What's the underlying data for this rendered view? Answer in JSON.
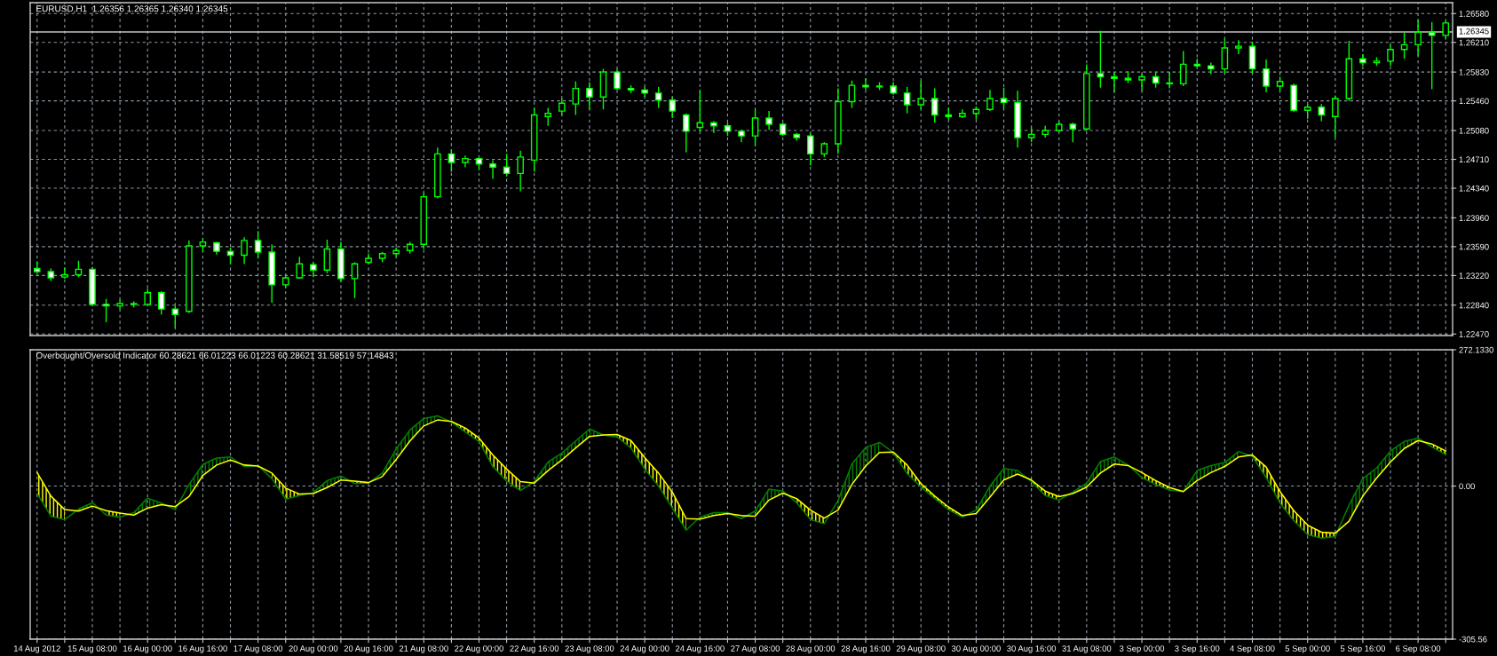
{
  "chart_data": [
    {
      "type": "candlestick",
      "title": "EURUSD,H1  1.26356 1.26365 1.26340 1.26345",
      "color": "#00ff00",
      "categories": [
        null,
        null,
        null,
        null,
        null,
        null,
        null,
        null,
        null,
        null,
        null,
        null,
        null,
        null,
        null,
        null,
        null,
        null,
        null,
        null,
        null,
        null,
        null,
        null,
        null,
        null,
        null,
        null,
        null,
        null,
        null,
        null,
        null,
        null,
        null,
        null,
        null,
        null,
        null,
        null,
        null,
        null,
        null,
        null,
        null,
        null,
        null,
        null,
        null,
        null,
        null,
        null,
        null,
        null,
        null,
        null,
        null,
        null,
        null,
        null,
        null,
        null,
        null,
        null,
        null,
        null,
        null,
        null,
        null,
        null,
        null,
        null,
        null,
        null,
        null,
        null,
        null,
        null,
        null,
        null,
        null,
        null,
        null,
        null,
        null,
        null,
        null,
        null,
        null,
        null,
        null,
        null,
        null,
        null,
        null,
        null,
        null,
        null,
        null,
        null,
        null,
        null,
        null
      ],
      "ohlc": [
        [
          1.2331,
          1.234,
          1.2325,
          1.2327
        ],
        [
          1.2327,
          1.2331,
          1.2315,
          1.2319
        ],
        [
          1.232,
          1.2332,
          1.2318,
          1.2323
        ],
        [
          1.2323,
          1.2341,
          1.232,
          1.233
        ],
        [
          1.233,
          1.2333,
          1.2283,
          1.2285
        ],
        [
          1.2285,
          1.2292,
          1.2262,
          1.2283
        ],
        [
          1.2283,
          1.2291,
          1.2279,
          1.2286
        ],
        [
          1.2286,
          1.2289,
          1.2281,
          1.2285
        ],
        [
          1.2285,
          1.2305,
          1.2283,
          1.23
        ],
        [
          1.23,
          1.2302,
          1.2272,
          1.2279
        ],
        [
          1.2279,
          1.2283,
          1.2255,
          1.2272
        ],
        [
          1.2276,
          1.2367,
          1.2274,
          1.236
        ],
        [
          1.236,
          1.237,
          1.2352,
          1.2365
        ],
        [
          1.2364,
          1.2365,
          1.2349,
          1.2353
        ],
        [
          1.2353,
          1.2358,
          1.2337,
          1.2348
        ],
        [
          1.2348,
          1.2371,
          1.2337,
          1.2367
        ],
        [
          1.2367,
          1.2379,
          1.2344,
          1.2352
        ],
        [
          1.2352,
          1.2362,
          1.2287,
          1.231
        ],
        [
          1.231,
          1.2323,
          1.2306,
          1.2319
        ],
        [
          1.2319,
          1.2346,
          1.2318,
          1.2337
        ],
        [
          1.2336,
          1.2339,
          1.232,
          1.2329
        ],
        [
          1.2329,
          1.2368,
          1.2325,
          1.2356
        ],
        [
          1.2356,
          1.2365,
          1.2314,
          1.2318
        ],
        [
          1.2318,
          1.2339,
          1.2293,
          1.2337
        ],
        [
          1.2339,
          1.235,
          1.2337,
          1.2344
        ],
        [
          1.2344,
          1.2352,
          1.2339,
          1.235
        ],
        [
          1.235,
          1.2358,
          1.2346,
          1.2354
        ],
        [
          1.2354,
          1.2365,
          1.235,
          1.2362
        ],
        [
          1.2362,
          1.2428,
          1.2356,
          1.2423
        ],
        [
          1.2423,
          1.2486,
          1.2421,
          1.2478
        ],
        [
          1.2478,
          1.2484,
          1.2455,
          1.2467
        ],
        [
          1.2467,
          1.2476,
          1.2461,
          1.2472
        ],
        [
          1.2472,
          1.2474,
          1.2457,
          1.2465
        ],
        [
          1.2465,
          1.247,
          1.2446,
          1.2461
        ],
        [
          1.2461,
          1.2478,
          1.2449,
          1.2453
        ],
        [
          1.2453,
          1.2482,
          1.243,
          1.2474
        ],
        [
          1.247,
          1.2537,
          1.2455,
          1.2528
        ],
        [
          1.2526,
          1.2537,
          1.2514,
          1.253
        ],
        [
          1.2533,
          1.2549,
          1.2528,
          1.2543
        ],
        [
          1.2542,
          1.2571,
          1.2528,
          1.2562
        ],
        [
          1.2562,
          1.257,
          1.2535,
          1.2551
        ],
        [
          1.2551,
          1.2587,
          1.2535,
          1.2583
        ],
        [
          1.2583,
          1.2587,
          1.256,
          1.2562
        ],
        [
          1.2562,
          1.2566,
          1.2556,
          1.256
        ],
        [
          1.256,
          1.2564,
          1.2551,
          1.2556
        ],
        [
          1.2556,
          1.2564,
          1.2537,
          1.2547
        ],
        [
          1.2547,
          1.2551,
          1.2524,
          1.2533
        ],
        [
          1.2528,
          1.253,
          1.248,
          1.2507
        ],
        [
          1.2512,
          1.256,
          1.2507,
          1.2518
        ],
        [
          1.2518,
          1.252,
          1.2505,
          1.2514
        ],
        [
          1.2514,
          1.2518,
          1.2501,
          1.2507
        ],
        [
          1.2507,
          1.2509,
          1.2493,
          1.2501
        ],
        [
          1.2501,
          1.2535,
          1.2488,
          1.2524
        ],
        [
          1.2524,
          1.2533,
          1.2509,
          1.2516
        ],
        [
          1.2516,
          1.2518,
          1.2501,
          1.2503
        ],
        [
          1.2503,
          1.2505,
          1.2495,
          1.2499
        ],
        [
          1.2501,
          1.2505,
          1.2463,
          1.2478
        ],
        [
          1.2478,
          1.2493,
          1.2474,
          1.2491
        ],
        [
          1.2491,
          1.2562,
          1.2478,
          1.2545
        ],
        [
          1.2545,
          1.2572,
          1.2537,
          1.2566
        ],
        [
          1.2566,
          1.2575,
          1.256,
          1.2564
        ],
        [
          1.2564,
          1.257,
          1.256,
          1.2565
        ],
        [
          1.2565,
          1.257,
          1.2554,
          1.2556
        ],
        [
          1.2556,
          1.2564,
          1.253,
          1.2541
        ],
        [
          1.2541,
          1.2572,
          1.2535,
          1.2549
        ],
        [
          1.2549,
          1.2562,
          1.2518,
          1.2528
        ],
        [
          1.2528,
          1.2537,
          1.2522,
          1.2526
        ],
        [
          1.2526,
          1.2535,
          1.2524,
          1.253
        ],
        [
          1.253,
          1.2539,
          1.2522,
          1.2535
        ],
        [
          1.2535,
          1.256,
          1.2533,
          1.2549
        ],
        [
          1.2549,
          1.2563,
          1.2536,
          1.2544
        ],
        [
          1.2544,
          1.2559,
          1.2486,
          1.2499
        ],
        [
          1.2499,
          1.2512,
          1.2493,
          1.2503
        ],
        [
          1.2503,
          1.2514,
          1.2499,
          1.2508
        ],
        [
          1.2508,
          1.252,
          1.2506,
          1.2516
        ],
        [
          1.2516,
          1.2518,
          1.2493,
          1.251
        ],
        [
          1.251,
          1.2593,
          1.2508,
          1.2581
        ],
        [
          1.2581,
          1.2636,
          1.2563,
          1.2577
        ],
        [
          1.2577,
          1.2583,
          1.2557,
          1.2575
        ],
        [
          1.2575,
          1.2584,
          1.2569,
          1.2573
        ],
        [
          1.2573,
          1.2581,
          1.2559,
          1.2577
        ],
        [
          1.2577,
          1.2583,
          1.2563,
          1.2569
        ],
        [
          1.2569,
          1.2583,
          1.2562,
          1.2568
        ],
        [
          1.2568,
          1.261,
          1.2565,
          1.2593
        ],
        [
          1.2593,
          1.26,
          1.2589,
          1.2591
        ],
        [
          1.2591,
          1.2595,
          1.258,
          1.2587
        ],
        [
          1.2587,
          1.2626,
          1.2581,
          1.2614
        ],
        [
          1.2614,
          1.2624,
          1.2606,
          1.2616
        ],
        [
          1.2616,
          1.2622,
          1.2581,
          1.2587
        ],
        [
          1.2587,
          1.2599,
          1.2557,
          1.2565
        ],
        [
          1.2565,
          1.2577,
          1.2559,
          1.2571
        ],
        [
          1.2566,
          1.2568,
          1.2532,
          1.2534
        ],
        [
          1.2534,
          1.2542,
          1.2523,
          1.2538
        ],
        [
          1.2538,
          1.2542,
          1.252,
          1.2528
        ],
        [
          1.2526,
          1.2553,
          1.2499,
          1.2549
        ],
        [
          1.2549,
          1.2623,
          1.2546,
          1.26
        ],
        [
          1.26,
          1.2606,
          1.2591,
          1.2595
        ],
        [
          1.2595,
          1.2602,
          1.2591,
          1.2597
        ],
        [
          1.2597,
          1.2618,
          1.2591,
          1.2612
        ],
        [
          1.2612,
          1.2634,
          1.26,
          1.2618
        ],
        [
          1.2618,
          1.265,
          1.2604,
          1.2634
        ],
        [
          1.2634,
          1.2647,
          1.2561,
          1.263
        ],
        [
          1.263,
          1.2649,
          1.2626,
          1.2646
        ]
      ],
      "ylim": [
        1.2245,
        1.2672
      ],
      "yticks": [
        {
          "value": 1.2658,
          "label": "1.26580"
        },
        {
          "value": 1.2621,
          "label": "1.26210"
        },
        {
          "value": 1.2583,
          "label": "1.25830"
        },
        {
          "value": 1.2546,
          "label": "1.25460"
        },
        {
          "value": 1.2508,
          "label": "1.25080"
        },
        {
          "value": 1.2471,
          "label": "1.24710"
        },
        {
          "value": 1.2434,
          "label": "1.24340"
        },
        {
          "value": 1.2396,
          "label": "1.23960"
        },
        {
          "value": 1.2359,
          "label": "1.23590"
        },
        {
          "value": 1.2322,
          "label": "1.23220"
        },
        {
          "value": 1.2284,
          "label": "1.22840"
        },
        {
          "value": 1.2247,
          "label": "1.22470"
        }
      ],
      "ref_lines": [
        {
          "axis": "y",
          "value": 1.26345,
          "label": "1.26345",
          "color": "#c0c0c0"
        }
      ],
      "grid": true,
      "tick_labels": "y"
    },
    {
      "type": "line",
      "title": "Overbought/Oversold Indicator 60.28621 66.01223 66.01223 60.28621 31.58519 57.14843",
      "categories": [
        "14 Aug 2012",
        null,
        null,
        null,
        "15 Aug 08:00",
        null,
        null,
        null,
        "16 Aug 00:00",
        null,
        null,
        null,
        "16 Aug 16:00",
        null,
        null,
        null,
        "17 Aug 08:00",
        null,
        null,
        null,
        "20 Aug 00:00",
        null,
        null,
        null,
        "20 Aug 16:00",
        null,
        null,
        null,
        "21 Aug 08:00",
        null,
        null,
        null,
        "22 Aug 00:00",
        null,
        null,
        null,
        "22 Aug 16:00",
        null,
        null,
        null,
        "23 Aug 08:00",
        null,
        null,
        null,
        "24 Aug 00:00",
        null,
        null,
        null,
        "24 Aug 16:00",
        null,
        null,
        null,
        "27 Aug 08:00",
        null,
        null,
        null,
        "28 Aug 00:00",
        null,
        null,
        null,
        "28 Aug 16:00",
        null,
        null,
        null,
        "29 Aug 08:00",
        null,
        null,
        null,
        "30 Aug 00:00",
        null,
        null,
        null,
        "30 Aug 16:00",
        null,
        null,
        null,
        "31 Aug 08:00",
        null,
        null,
        null,
        "3 Sep 00:00",
        null,
        null,
        null,
        "3 Sep 16:00",
        null,
        null,
        null,
        "4 Sep 08:00",
        null,
        null,
        null,
        "5 Sep 00:00",
        null,
        null,
        null,
        "5 Sep 16:00",
        null,
        null,
        null,
        "6 Sep 08:00",
        null,
        null
      ],
      "series": [
        {
          "color": "#008000",
          "values": [
            -15,
            -60,
            -67,
            -46,
            -33,
            -58,
            -62,
            -53,
            -24,
            -34,
            -47,
            3,
            43,
            56,
            58,
            39,
            41,
            15,
            -26,
            -19,
            -13,
            11,
            20,
            5,
            6,
            26,
            74,
            112,
            135,
            140,
            128,
            108,
            89,
            39,
            10,
            -9,
            9,
            48,
            66,
            90,
            114,
            102,
            98,
            76,
            34,
            0,
            -44,
            -88,
            -62,
            -53,
            -53,
            -65,
            -50,
            -6,
            -10,
            -33,
            -67,
            -75,
            -29,
            44,
            77,
            87,
            67,
            25,
            -2,
            -25,
            -47,
            -62,
            -48,
            0,
            35,
            31,
            9,
            -19,
            -28,
            -12,
            6,
            49,
            58,
            42,
            17,
            3,
            -8,
            -11,
            31,
            41,
            47,
            69,
            59,
            17,
            -34,
            -69,
            -97,
            -104,
            -101,
            -38,
            15,
            36,
            70,
            89,
            96,
            78,
            63
          ],
          "lower": [
            null,
            null,
            null,
            -50,
            -40,
            null,
            null,
            -58,
            -44,
            -37,
            null,
            -21,
            21,
            42,
            52,
            null,
            null,
            null,
            null,
            null,
            -15,
            -3,
            12,
            null,
            null,
            19,
            53,
            90,
            120,
            132,
            null,
            null,
            null,
            null,
            null,
            null,
            6,
            31,
            52,
            76,
            99,
            102,
            null,
            null,
            null,
            null,
            null,
            null,
            -66,
            -59,
            -55,
            null,
            -60,
            -28,
            -14,
            null,
            null,
            null,
            -48,
            3,
            40,
            67,
            null,
            null,
            null,
            null,
            null,
            null,
            -55,
            -22,
            12,
            24,
            null,
            null,
            null,
            -15,
            -2,
            26,
            44,
            41,
            null,
            null,
            null,
            -11,
            11,
            27,
            39,
            58,
            null,
            null,
            null,
            null,
            null,
            null,
            null,
            -70,
            -20,
            16,
            48,
            75,
            91,
            null,
            null
          ],
          "upper": [
            null,
            null,
            null,
            -46,
            -33,
            null,
            null,
            -53,
            -24,
            -34,
            null,
            3,
            43,
            56,
            58,
            null,
            null,
            null,
            null,
            null,
            -13,
            11,
            20,
            null,
            null,
            26,
            74,
            112,
            135,
            140,
            null,
            null,
            null,
            null,
            null,
            null,
            9,
            48,
            66,
            90,
            114,
            102,
            null,
            null,
            null,
            null,
            null,
            null,
            -62,
            -53,
            -53,
            null,
            -50,
            -6,
            -10,
            null,
            null,
            null,
            -29,
            44,
            77,
            87,
            null,
            null,
            null,
            null,
            null,
            null,
            -48,
            0,
            35,
            31,
            null,
            null,
            null,
            -12,
            6,
            49,
            58,
            42,
            null,
            null,
            null,
            -11,
            31,
            41,
            47,
            69,
            null,
            null,
            null,
            null,
            null,
            null,
            null,
            -38,
            15,
            36,
            70,
            89,
            96,
            null,
            null
          ]
        },
        {
          "color": "#ffff00",
          "values": [
            27,
            -20,
            -47,
            -50,
            -40,
            -49,
            -54,
            -58,
            -44,
            -37,
            -41,
            -21,
            21,
            42,
            52,
            42,
            40,
            26,
            -4,
            -16,
            -15,
            -3,
            12,
            10,
            7,
            19,
            53,
            90,
            120,
            132,
            129,
            116,
            96,
            62,
            34,
            9,
            6,
            31,
            52,
            76,
            99,
            102,
            103,
            91,
            57,
            26,
            -12,
            -65,
            -66,
            -59,
            -55,
            -59,
            -60,
            -28,
            -14,
            -25,
            -48,
            -64,
            -48,
            3,
            40,
            67,
            68,
            42,
            5,
            -20,
            -42,
            -59,
            -55,
            -22,
            12,
            24,
            12,
            -10,
            -21,
            -15,
            -2,
            26,
            44,
            41,
            27,
            11,
            -3,
            -11,
            11,
            27,
            39,
            58,
            62,
            38,
            -11,
            -49,
            -78,
            -92,
            -94,
            -70,
            -20,
            16,
            48,
            75,
            91,
            84,
            70
          ],
          "lower": [
            -15,
            -60,
            -67,
            null,
            null,
            -58,
            -62,
            null,
            null,
            null,
            null,
            null,
            null,
            null,
            null,
            null,
            null,
            15,
            -26,
            -19,
            null,
            null,
            null,
            5,
            6,
            null,
            null,
            null,
            null,
            null,
            128,
            108,
            89,
            39,
            10,
            -9,
            null,
            null,
            null,
            null,
            null,
            null,
            98,
            76,
            34,
            0,
            -44,
            -88,
            null,
            null,
            null,
            null,
            null,
            null,
            null,
            -33,
            -67,
            -75,
            null,
            null,
            null,
            null,
            67,
            25,
            -2,
            -25,
            -47,
            -62,
            null,
            null,
            null,
            null,
            9,
            -19,
            -28,
            null,
            null,
            null,
            null,
            null,
            17,
            3,
            -8,
            null,
            null,
            null,
            null,
            null,
            59,
            17,
            -34,
            -69,
            -97,
            -104,
            -101,
            null,
            null,
            null,
            null,
            null,
            null,
            78,
            63
          ],
          "upper": [
            27,
            -20,
            -47,
            null,
            null,
            -49,
            -54,
            null,
            null,
            null,
            null,
            null,
            null,
            null,
            null,
            null,
            null,
            26,
            -4,
            -16,
            null,
            null,
            null,
            10,
            7,
            null,
            null,
            null,
            null,
            null,
            129,
            116,
            96,
            62,
            34,
            9,
            null,
            null,
            null,
            null,
            null,
            null,
            103,
            91,
            57,
            26,
            -12,
            -65,
            null,
            null,
            null,
            null,
            null,
            null,
            null,
            -25,
            -48,
            -64,
            null,
            null,
            null,
            null,
            68,
            42,
            5,
            -20,
            -42,
            -59,
            null,
            null,
            null,
            null,
            12,
            -10,
            -21,
            null,
            null,
            null,
            null,
            null,
            27,
            11,
            -3,
            null,
            null,
            null,
            null,
            null,
            62,
            38,
            -11,
            -49,
            -78,
            -92,
            -94,
            null,
            null,
            null,
            null,
            null,
            null,
            84,
            70
          ]
        }
      ],
      "ylim": [
        -305.56,
        272.133
      ],
      "yticks": [
        {
          "value": 272.133,
          "label": "272.1330"
        },
        {
          "value": 0,
          "label": "0.00"
        },
        {
          "value": -305.56,
          "label": "-305.56"
        }
      ],
      "grid": true
    }
  ]
}
